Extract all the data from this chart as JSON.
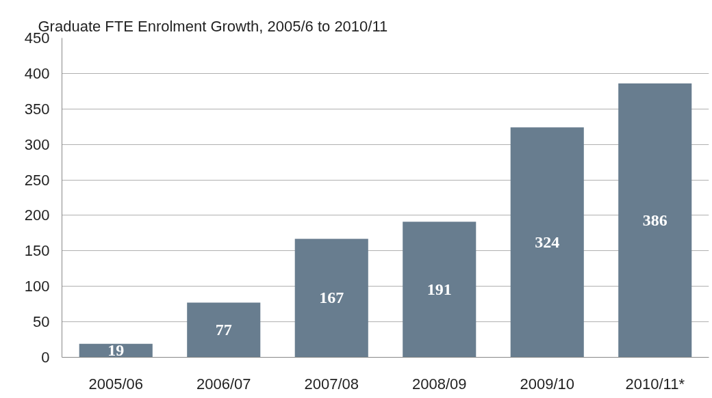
{
  "chart_data": {
    "type": "bar",
    "title": "Graduate FTE Enrolment Growth, 2005/6 to 2010/11",
    "categories": [
      "2005/06",
      "2006/07",
      "2007/08",
      "2008/09",
      "2009/10",
      "2010/11*"
    ],
    "values": [
      19,
      77,
      167,
      191,
      324,
      386
    ],
    "color": "#687d8f",
    "ylim": [
      0,
      450
    ],
    "yticks": [
      0,
      50,
      100,
      150,
      200,
      250,
      300,
      350,
      400,
      450
    ],
    "grid": "y",
    "data_labels": true
  }
}
